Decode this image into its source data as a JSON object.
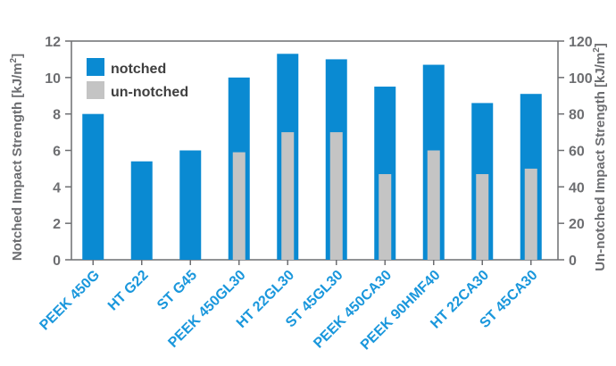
{
  "colors": {
    "notched": "#0a8ad2",
    "un_notched": "#c4c4c4",
    "axis": "#6d6e71",
    "category_text": "#1a97dc"
  },
  "chart_data": {
    "type": "bar",
    "categories": [
      "PEEK 450G",
      "HT G22",
      "ST G45",
      "PEEK 450GL30",
      "HT 22GL30",
      "ST 45GL30",
      "PEEK 450CA30",
      "PEEK 90HMF40",
      "HT 22CA30",
      "ST 45CA30"
    ],
    "series": [
      {
        "name": "notched",
        "axis": "left",
        "values": [
          8.0,
          5.4,
          6.0,
          10.0,
          11.3,
          11.0,
          9.5,
          10.7,
          8.6,
          9.1
        ]
      },
      {
        "name": "un-notched",
        "axis": "right",
        "values": [
          null,
          null,
          null,
          59,
          70,
          70,
          47,
          60,
          47,
          50
        ]
      }
    ],
    "ylabel_left_main": "Notched Impact Strength  [kJ/m",
    "ylabel_right_main": "Un-notched Impact Strength  [kJ/m",
    "ylabel_sup": "2",
    "ylabel_close": "]",
    "ylim_left": [
      0,
      12
    ],
    "ylim_right": [
      0,
      120
    ],
    "yticks_left": [
      "0",
      "2",
      "4",
      "6",
      "8",
      "10",
      "12"
    ],
    "yticks_right": [
      "0",
      "20",
      "40",
      "60",
      "80",
      "100",
      "120"
    ],
    "grid": false,
    "legend_position": "top-left"
  }
}
